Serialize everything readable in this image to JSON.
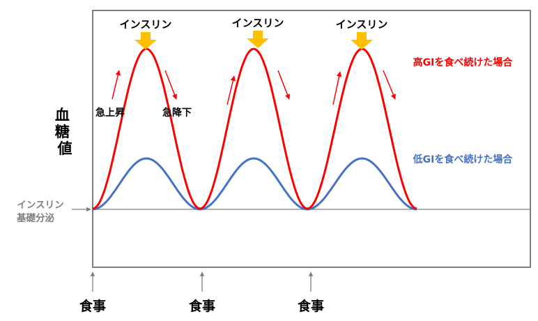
{
  "y_axis_label": "血糖値",
  "baseline_label": [
    "インスリン",
    "基礎分泌"
  ],
  "insulin_label": "インスリン",
  "rise_label": "急上昇",
  "fall_label": "急降下",
  "meal_label": "食事",
  "legend": {
    "high_gi": "高GIを食べ続けた場合",
    "low_gi": "低GIを食べ続けた場合"
  },
  "colors": {
    "high_gi": "#ff0000",
    "low_gi": "#4472c4",
    "insulin_arrow": "#ffc000",
    "frame": "#7f7f7f",
    "baseline": "#7f7f7f"
  }
}
